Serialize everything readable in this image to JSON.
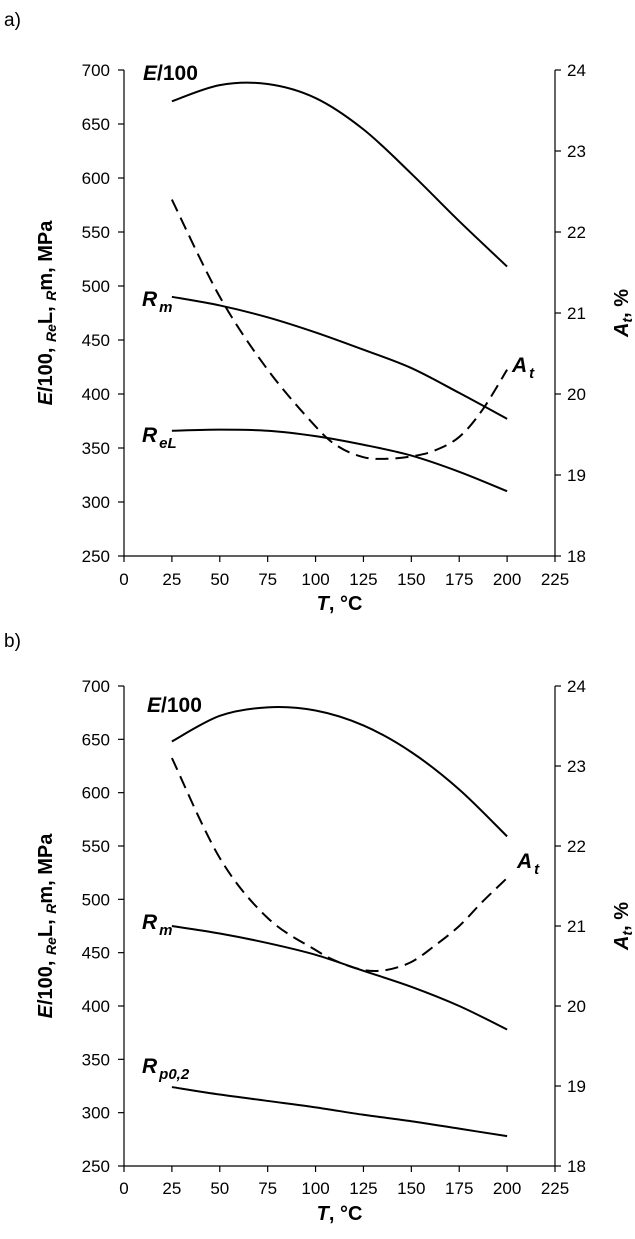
{
  "chart_data": [
    {
      "panel": "a)",
      "type": "line",
      "xlabel": {
        "main": "T",
        "rest": ", °C"
      },
      "ylabel_left": "E/100, ReL, Rm, MPa",
      "ylabel_right": "At, %",
      "xlim": [
        0,
        225
      ],
      "ylim_left": [
        250,
        700
      ],
      "ylim_right": [
        18,
        24
      ],
      "x_ticks": [
        "0",
        "25",
        "50",
        "75",
        "100",
        "125",
        "150",
        "175",
        "200",
        "225"
      ],
      "y_left_ticks": [
        "250",
        "300",
        "350",
        "400",
        "450",
        "500",
        "550",
        "600",
        "650",
        "700"
      ],
      "y_right_ticks": [
        "18",
        "19",
        "20",
        "21",
        "22",
        "23",
        "24"
      ],
      "series": [
        {
          "name": "E/100",
          "axis": "left",
          "style": "solid",
          "x": [
            25,
            50,
            75,
            100,
            125,
            150,
            175,
            200
          ],
          "y": [
            671,
            686,
            687,
            674,
            645,
            604,
            560,
            518
          ]
        },
        {
          "name": "Rm",
          "axis": "left",
          "style": "solid",
          "x": [
            25,
            50,
            75,
            100,
            125,
            150,
            175,
            200
          ],
          "y": [
            490,
            482,
            471,
            457,
            441,
            424,
            401,
            377
          ]
        },
        {
          "name": "ReL",
          "axis": "left",
          "style": "solid",
          "x": [
            25,
            50,
            75,
            100,
            125,
            150,
            175,
            200
          ],
          "y": [
            366,
            367,
            366,
            361,
            353,
            343,
            328,
            310
          ]
        },
        {
          "name": "At",
          "axis": "right",
          "style": "dashed",
          "x": [
            25,
            50,
            75,
            100,
            112,
            125,
            137,
            150,
            162,
            175,
            187,
            200
          ],
          "y": [
            22.4,
            21.2,
            20.3,
            19.6,
            19.35,
            19.22,
            19.2,
            19.23,
            19.3,
            19.47,
            19.8,
            20.3
          ]
        }
      ],
      "labels": [
        {
          "main": "E",
          "rest": "/100",
          "sub": ""
        },
        {
          "main": "R",
          "rest": "",
          "sub": "m"
        },
        {
          "main": "R",
          "rest": "",
          "sub": "eL"
        },
        {
          "main": "A",
          "rest": "",
          "sub": "t"
        }
      ]
    },
    {
      "panel": "b)",
      "type": "line",
      "xlabel": {
        "main": "T",
        "rest": ", °C"
      },
      "ylabel_left": "E/100, ReL, Rm, MPa",
      "ylabel_right": "At, %",
      "xlim": [
        0,
        225
      ],
      "ylim_left": [
        250,
        700
      ],
      "ylim_right": [
        18,
        24
      ],
      "x_ticks": [
        "0",
        "25",
        "50",
        "75",
        "100",
        "125",
        "150",
        "175",
        "200",
        "225"
      ],
      "y_left_ticks": [
        "250",
        "300",
        "350",
        "400",
        "450",
        "500",
        "550",
        "600",
        "650",
        "700"
      ],
      "y_right_ticks": [
        "18",
        "19",
        "20",
        "21",
        "22",
        "23",
        "24"
      ],
      "series": [
        {
          "name": "E/100",
          "axis": "left",
          "style": "solid",
          "x": [
            25,
            50,
            75,
            100,
            125,
            150,
            175,
            200
          ],
          "y": [
            648,
            672,
            680,
            677,
            663,
            638,
            603,
            559
          ]
        },
        {
          "name": "Rm",
          "axis": "left",
          "style": "solid",
          "x": [
            25,
            50,
            75,
            100,
            125,
            150,
            175,
            200
          ],
          "y": [
            475,
            468,
            459,
            448,
            433,
            418,
            400,
            378
          ]
        },
        {
          "name": "Rp0,2",
          "axis": "left",
          "style": "solid",
          "x": [
            25,
            50,
            75,
            100,
            125,
            150,
            175,
            200
          ],
          "y": [
            324,
            317,
            311,
            305,
            298,
            292,
            285,
            278
          ]
        },
        {
          "name": "At",
          "axis": "right",
          "style": "dashed",
          "x": [
            25,
            50,
            75,
            100,
            112,
            125,
            137,
            150,
            162,
            175,
            187,
            200
          ],
          "y": [
            23.1,
            21.85,
            21.1,
            20.7,
            20.55,
            20.45,
            20.45,
            20.55,
            20.75,
            21.0,
            21.3,
            21.6
          ]
        }
      ],
      "labels": [
        {
          "main": "E",
          "rest": "/100",
          "sub": ""
        },
        {
          "main": "R",
          "rest": "",
          "sub": "m"
        },
        {
          "main": "R",
          "rest": "",
          "sub": "p0,2"
        },
        {
          "main": "A",
          "rest": "",
          "sub": "t"
        }
      ]
    }
  ]
}
